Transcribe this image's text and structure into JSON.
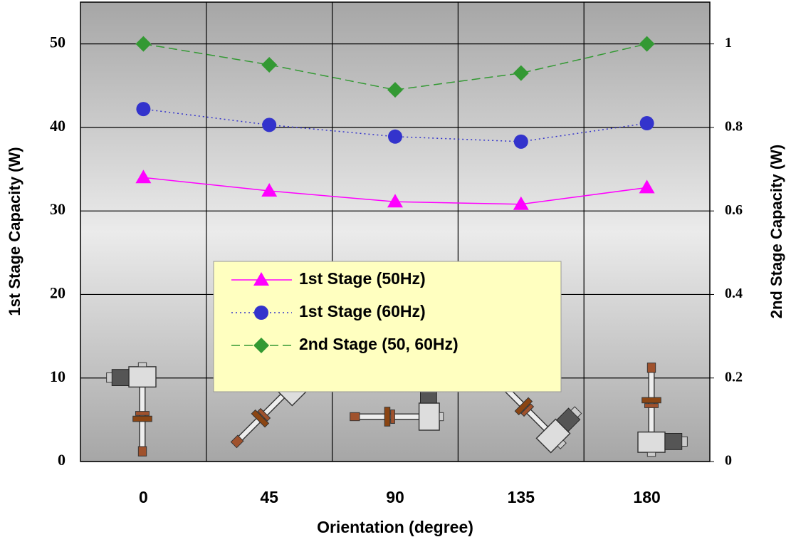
{
  "chart_data": {
    "type": "line",
    "x_label": "Orientation (degree)",
    "y_label": "1st Stage Capacity (W)",
    "y2_label": "2nd Stage Capacity (W)",
    "categories": [
      "0",
      "45",
      "90",
      "135",
      "180"
    ],
    "ylim": [
      0,
      55
    ],
    "yticks": [
      0,
      10,
      20,
      30,
      40,
      50
    ],
    "y2lim": [
      0,
      1.1
    ],
    "y2ticks": [
      0,
      0.2,
      0.4,
      0.6,
      0.8,
      1
    ],
    "grid": true,
    "series": [
      {
        "name": "1st Stage (50Hz)",
        "color": "#ff00ff",
        "marker": "triangle",
        "dash": "solid",
        "values": [
          34.0,
          32.4,
          31.1,
          30.8,
          32.8
        ]
      },
      {
        "name": "1st Stage (60Hz)",
        "color": "#3333cc",
        "marker": "circle",
        "dash": "dotted",
        "values": [
          42.2,
          40.3,
          38.9,
          38.3,
          40.5
        ]
      },
      {
        "name": "2nd Stage (50, 60Hz)",
        "color": "#339933",
        "marker": "diamond",
        "dash": "dashed",
        "axis": "y2",
        "values": [
          1.0,
          0.95,
          0.89,
          0.93,
          1.0
        ]
      }
    ]
  }
}
